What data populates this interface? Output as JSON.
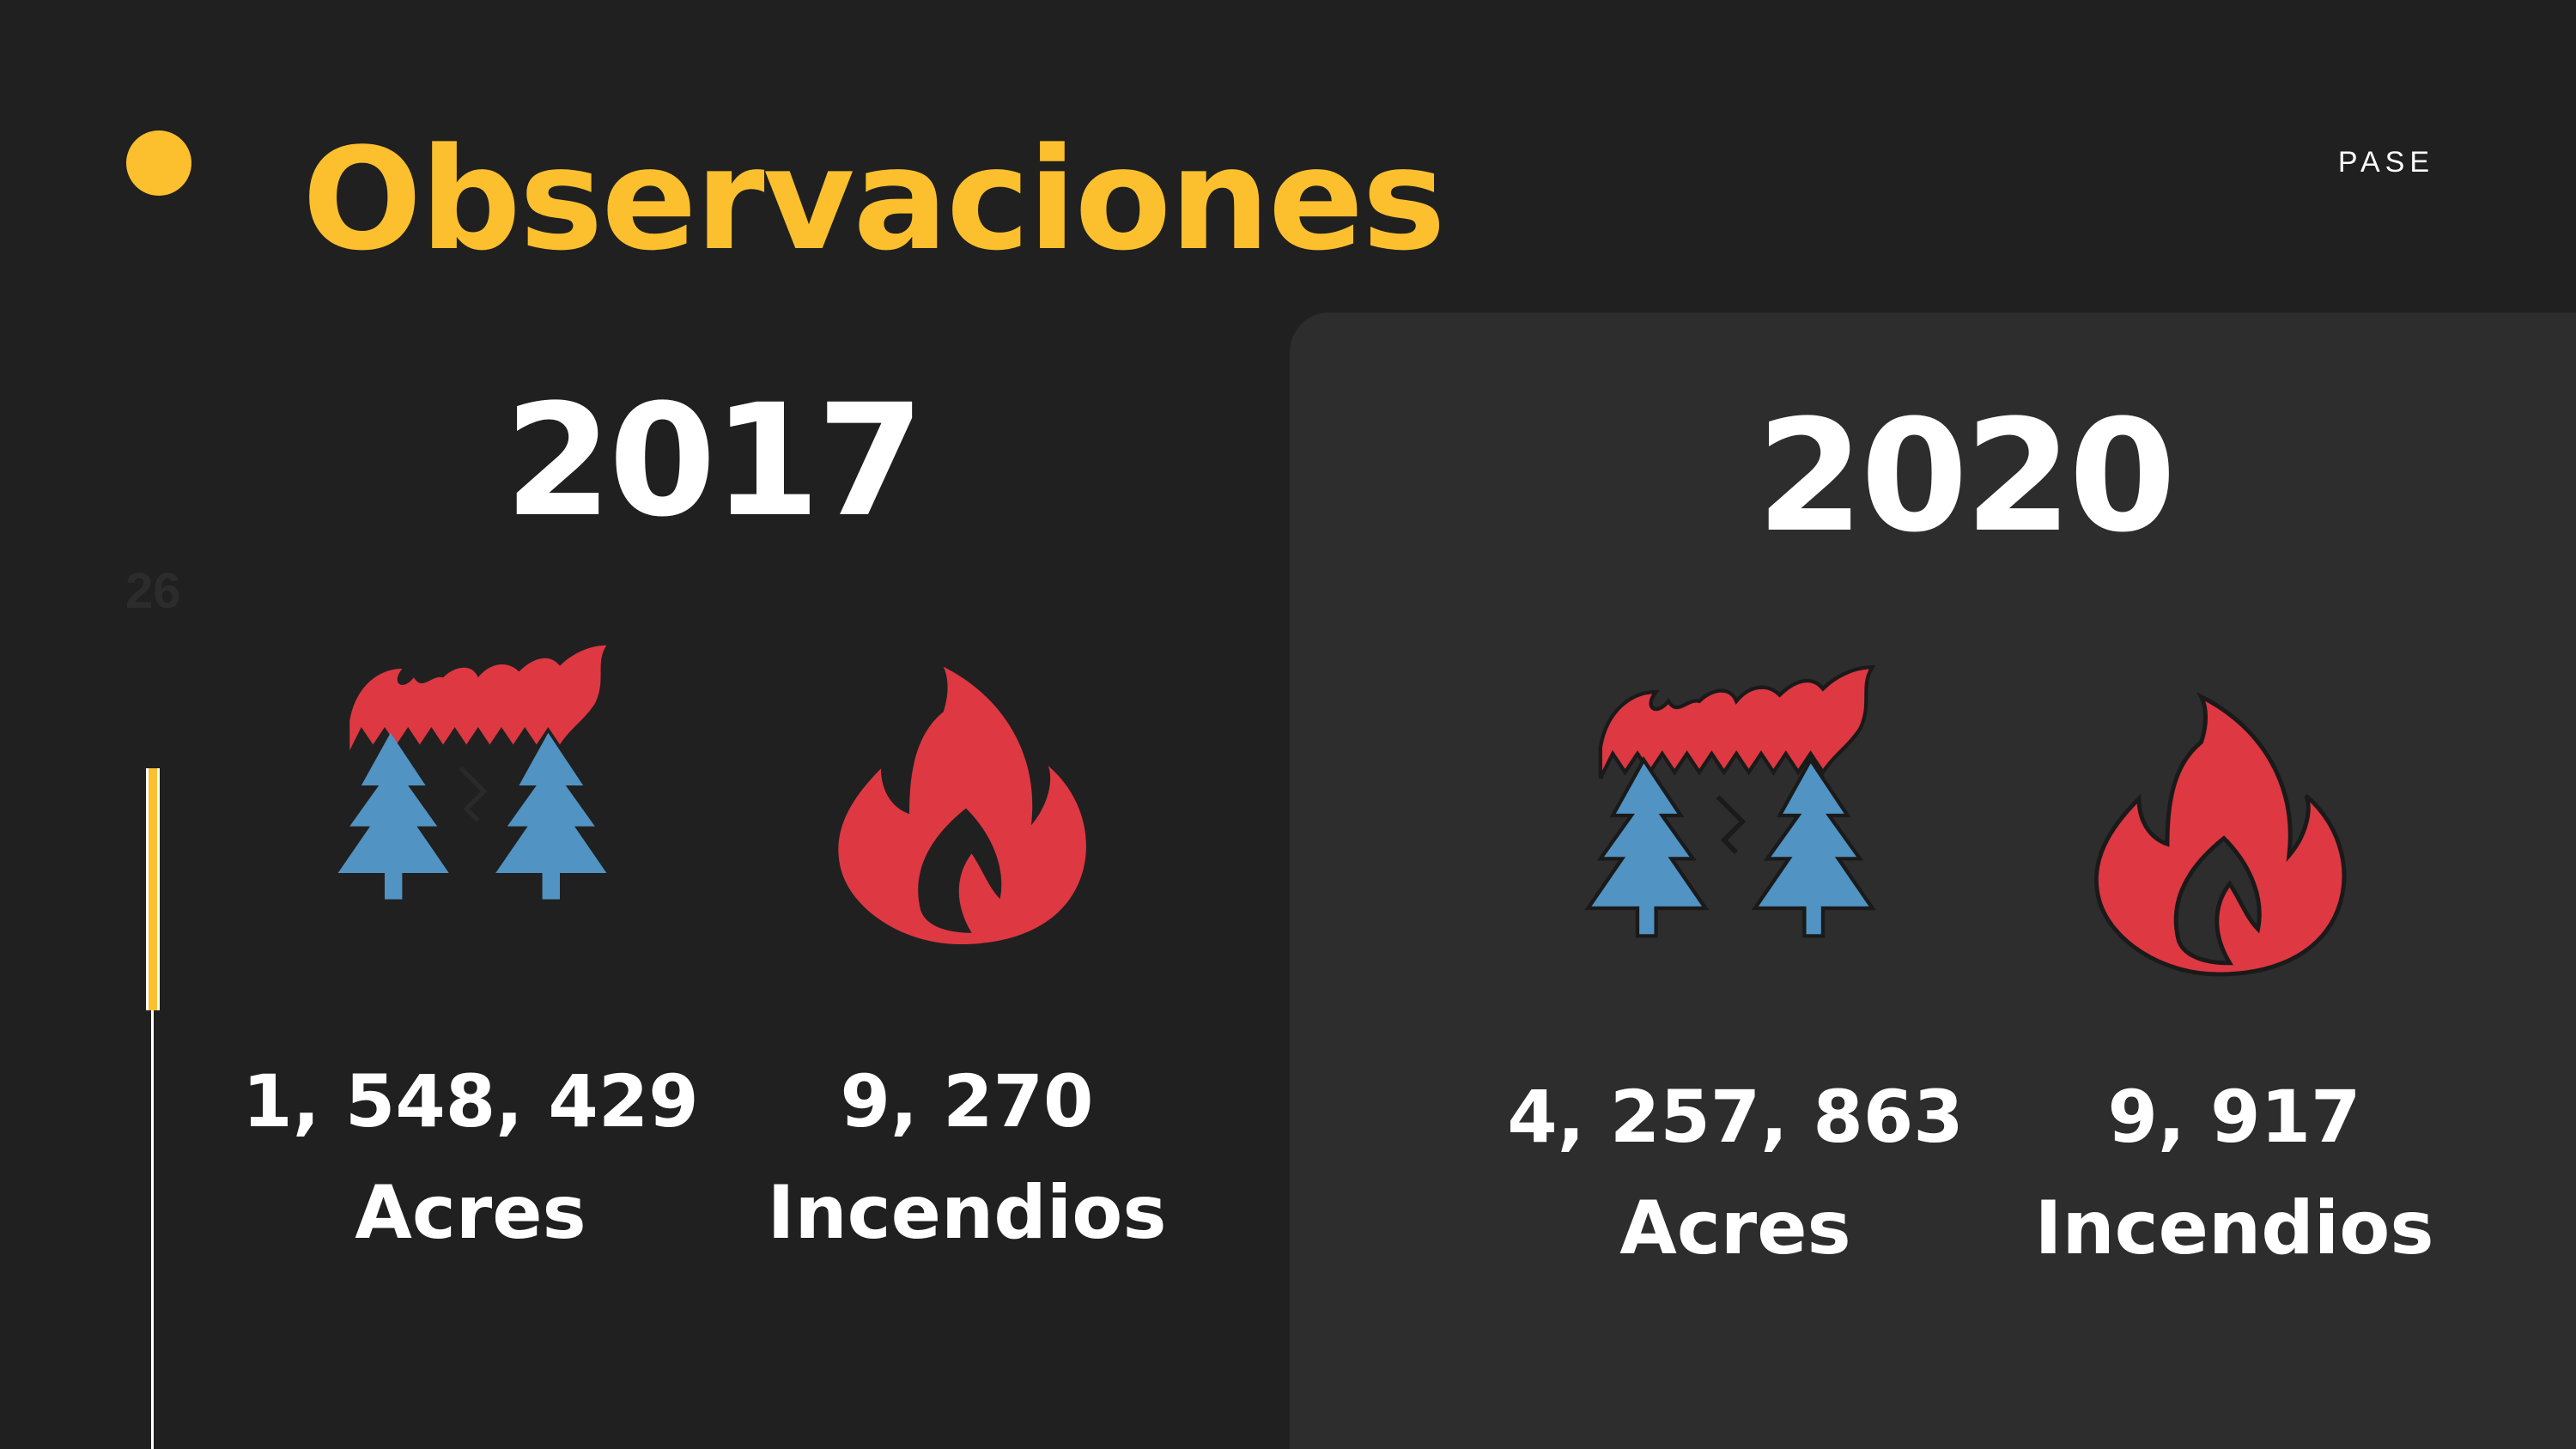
{
  "header": {
    "title": "Observaciones",
    "nav_label": "PASE",
    "slide_number": "26"
  },
  "colors": {
    "accent": "#FCC02E",
    "background": "#202020",
    "panel": "#2D2D2D",
    "flame_red": "#DE3842",
    "tree_blue": "#5193C2"
  },
  "columns": [
    {
      "year": "2017",
      "stats": [
        {
          "icon": "forest-fire-icon",
          "value": "1, 548, 429",
          "label": "Acres"
        },
        {
          "icon": "flame-icon",
          "value": "9, 270",
          "label": "Incendios"
        }
      ]
    },
    {
      "year": "2020",
      "stats": [
        {
          "icon": "forest-fire-icon",
          "value": "4, 257, 863",
          "label": "Acres"
        },
        {
          "icon": "flame-icon",
          "value": "9, 917",
          "label": "Incendios"
        }
      ]
    }
  ]
}
